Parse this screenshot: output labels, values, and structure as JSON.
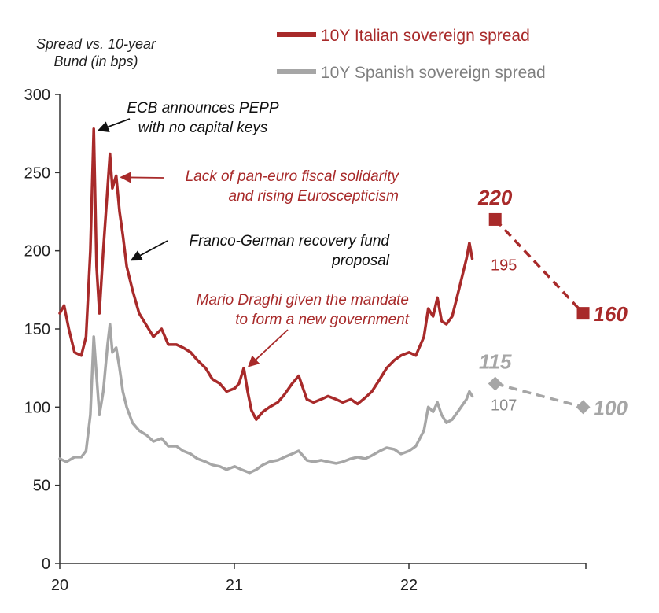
{
  "chart_data": {
    "type": "line",
    "ylabel": "Spread vs. 10-year Bund (in bps)",
    "ylim": [
      0,
      300
    ],
    "yticks": [
      0,
      50,
      100,
      150,
      200,
      250,
      300
    ],
    "xticks": [
      "20",
      "21",
      "22"
    ],
    "legend_position": "top-right",
    "series": [
      {
        "name": "10Y Italian sovereign spread",
        "color": "#a82a2a",
        "points": [
          [
            "2020-01-01",
            160
          ],
          [
            "2020-01-10",
            165
          ],
          [
            "2020-01-20",
            150
          ],
          [
            "2020-02-01",
            135
          ],
          [
            "2020-02-15",
            133
          ],
          [
            "2020-02-25",
            145
          ],
          [
            "2020-03-05",
            200
          ],
          [
            "2020-03-12",
            278
          ],
          [
            "2020-03-18",
            190
          ],
          [
            "2020-03-24",
            160
          ],
          [
            "2020-04-01",
            200
          ],
          [
            "2020-04-10",
            240
          ],
          [
            "2020-04-15",
            262
          ],
          [
            "2020-04-20",
            240
          ],
          [
            "2020-04-28",
            248
          ],
          [
            "2020-05-05",
            225
          ],
          [
            "2020-05-12",
            210
          ],
          [
            "2020-05-20",
            190
          ],
          [
            "2020-06-01",
            175
          ],
          [
            "2020-06-15",
            160
          ],
          [
            "2020-07-01",
            152
          ],
          [
            "2020-07-15",
            145
          ],
          [
            "2020-08-01",
            150
          ],
          [
            "2020-08-15",
            140
          ],
          [
            "2020-09-01",
            140
          ],
          [
            "2020-09-15",
            138
          ],
          [
            "2020-10-01",
            135
          ],
          [
            "2020-10-15",
            130
          ],
          [
            "2020-11-01",
            125
          ],
          [
            "2020-11-15",
            118
          ],
          [
            "2020-12-01",
            115
          ],
          [
            "2020-12-15",
            110
          ],
          [
            "2021-01-01",
            112
          ],
          [
            "2021-01-10",
            115
          ],
          [
            "2021-01-20",
            125
          ],
          [
            "2021-01-28",
            110
          ],
          [
            "2021-02-05",
            98
          ],
          [
            "2021-02-15",
            92
          ],
          [
            "2021-03-01",
            97
          ],
          [
            "2021-03-15",
            100
          ],
          [
            "2021-04-01",
            103
          ],
          [
            "2021-04-15",
            108
          ],
          [
            "2021-05-01",
            115
          ],
          [
            "2021-05-15",
            120
          ],
          [
            "2021-06-01",
            105
          ],
          [
            "2021-06-15",
            103
          ],
          [
            "2021-07-01",
            105
          ],
          [
            "2021-07-15",
            107
          ],
          [
            "2021-08-01",
            105
          ],
          [
            "2021-08-15",
            103
          ],
          [
            "2021-09-01",
            105
          ],
          [
            "2021-09-15",
            102
          ],
          [
            "2021-10-01",
            106
          ],
          [
            "2021-10-15",
            110
          ],
          [
            "2021-11-01",
            118
          ],
          [
            "2021-11-15",
            125
          ],
          [
            "2021-12-01",
            130
          ],
          [
            "2021-12-15",
            133
          ],
          [
            "2022-01-01",
            135
          ],
          [
            "2022-01-15",
            133
          ],
          [
            "2022-02-01",
            145
          ],
          [
            "2022-02-10",
            163
          ],
          [
            "2022-02-20",
            158
          ],
          [
            "2022-03-01",
            170
          ],
          [
            "2022-03-10",
            155
          ],
          [
            "2022-03-20",
            153
          ],
          [
            "2022-04-01",
            158
          ],
          [
            "2022-04-15",
            175
          ],
          [
            "2022-05-01",
            195
          ],
          [
            "2022-05-07",
            205
          ],
          [
            "2022-05-13",
            195
          ]
        ],
        "last_value": 195,
        "projections": [
          [
            "2022-06-30",
            220
          ],
          [
            "2022-12-31",
            160
          ]
        ],
        "projection_marker": "square"
      },
      {
        "name": "10Y Spanish sovereign spread",
        "color": "#a6a6a6",
        "points": [
          [
            "2020-01-01",
            67
          ],
          [
            "2020-01-15",
            65
          ],
          [
            "2020-02-01",
            68
          ],
          [
            "2020-02-15",
            68
          ],
          [
            "2020-02-25",
            72
          ],
          [
            "2020-03-05",
            95
          ],
          [
            "2020-03-12",
            145
          ],
          [
            "2020-03-18",
            120
          ],
          [
            "2020-03-24",
            95
          ],
          [
            "2020-04-01",
            110
          ],
          [
            "2020-04-10",
            140
          ],
          [
            "2020-04-15",
            153
          ],
          [
            "2020-04-20",
            135
          ],
          [
            "2020-04-28",
            138
          ],
          [
            "2020-05-05",
            125
          ],
          [
            "2020-05-12",
            110
          ],
          [
            "2020-05-20",
            100
          ],
          [
            "2020-06-01",
            90
          ],
          [
            "2020-06-15",
            85
          ],
          [
            "2020-07-01",
            82
          ],
          [
            "2020-07-15",
            78
          ],
          [
            "2020-08-01",
            80
          ],
          [
            "2020-08-15",
            75
          ],
          [
            "2020-09-01",
            75
          ],
          [
            "2020-09-15",
            72
          ],
          [
            "2020-10-01",
            70
          ],
          [
            "2020-10-15",
            67
          ],
          [
            "2020-11-01",
            65
          ],
          [
            "2020-11-15",
            63
          ],
          [
            "2020-12-01",
            62
          ],
          [
            "2020-12-15",
            60
          ],
          [
            "2021-01-01",
            62
          ],
          [
            "2021-01-15",
            60
          ],
          [
            "2021-02-01",
            58
          ],
          [
            "2021-02-15",
            60
          ],
          [
            "2021-03-01",
            63
          ],
          [
            "2021-03-15",
            65
          ],
          [
            "2021-04-01",
            66
          ],
          [
            "2021-04-15",
            68
          ],
          [
            "2021-05-01",
            70
          ],
          [
            "2021-05-15",
            72
          ],
          [
            "2021-06-01",
            66
          ],
          [
            "2021-06-15",
            65
          ],
          [
            "2021-07-01",
            66
          ],
          [
            "2021-07-15",
            65
          ],
          [
            "2021-08-01",
            64
          ],
          [
            "2021-08-15",
            65
          ],
          [
            "2021-09-01",
            67
          ],
          [
            "2021-09-15",
            68
          ],
          [
            "2021-10-01",
            67
          ],
          [
            "2021-10-15",
            69
          ],
          [
            "2021-11-01",
            72
          ],
          [
            "2021-11-15",
            74
          ],
          [
            "2021-12-01",
            73
          ],
          [
            "2021-12-15",
            70
          ],
          [
            "2022-01-01",
            72
          ],
          [
            "2022-01-15",
            75
          ],
          [
            "2022-02-01",
            85
          ],
          [
            "2022-02-10",
            100
          ],
          [
            "2022-02-20",
            97
          ],
          [
            "2022-03-01",
            103
          ],
          [
            "2022-03-10",
            95
          ],
          [
            "2022-03-20",
            90
          ],
          [
            "2022-04-01",
            92
          ],
          [
            "2022-04-15",
            98
          ],
          [
            "2022-05-01",
            105
          ],
          [
            "2022-05-07",
            110
          ],
          [
            "2022-05-13",
            107
          ]
        ],
        "last_value": 107,
        "projections": [
          [
            "2022-06-30",
            115
          ],
          [
            "2022-12-31",
            100
          ]
        ],
        "projection_marker": "diamond"
      }
    ],
    "annotations": [
      {
        "id": "pepp",
        "lines": [
          "ECB announces PEPP",
          "with no capital keys"
        ],
        "color": "#111111",
        "target": [
          "2020-03-12",
          278
        ]
      },
      {
        "id": "solidarity",
        "lines": [
          "Lack of pan-euro fiscal solidarity",
          "and rising Euroscepticism"
        ],
        "color": "#a82a2a",
        "target": [
          "2020-04-28",
          248
        ]
      },
      {
        "id": "recovery",
        "lines": [
          "Franco-German recovery fund",
          "proposal"
        ],
        "color": "#111111",
        "target": [
          "2020-05-20",
          195
        ]
      },
      {
        "id": "draghi",
        "lines": [
          "Mario Draghi given the mandate",
          "to form a new government"
        ],
        "color": "#a82a2a",
        "target": [
          "2021-01-20",
          127
        ]
      }
    ]
  }
}
